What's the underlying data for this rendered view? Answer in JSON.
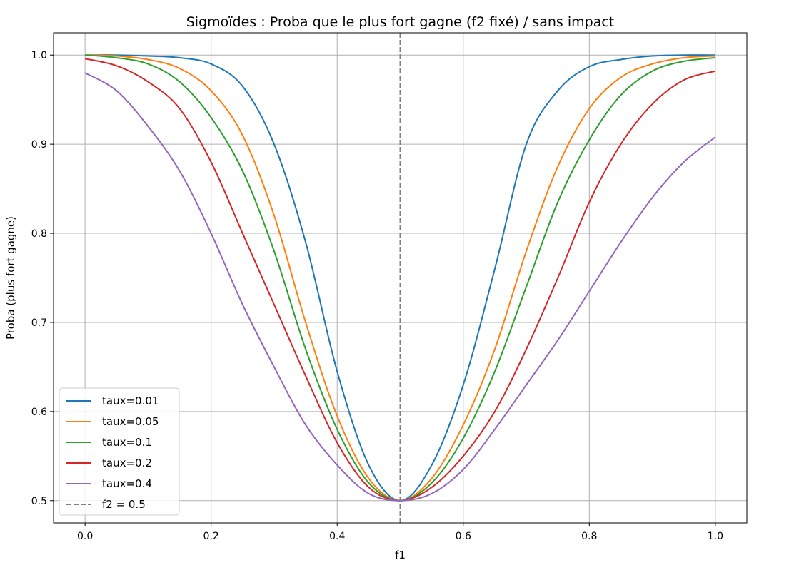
{
  "chart_data": {
    "type": "line",
    "title": "Sigmoïdes : Proba que le plus fort gagne (f2 fixé) / sans impact",
    "xlabel": "f1",
    "ylabel": "Proba (plus fort gagne)",
    "xlim": [
      -0.05,
      1.05
    ],
    "ylim": [
      0.475,
      1.025
    ],
    "xticks": [
      0.0,
      0.2,
      0.4,
      0.6,
      0.8,
      1.0
    ],
    "xtick_labels": [
      "0.0",
      "0.2",
      "0.4",
      "0.6",
      "0.8",
      "1.0"
    ],
    "yticks": [
      0.5,
      0.6,
      0.7,
      0.8,
      0.9,
      1.0
    ],
    "ytick_labels": [
      "0.5",
      "0.6",
      "0.7",
      "0.8",
      "0.9",
      "1.0"
    ],
    "grid": true,
    "legend_position": "lower-left",
    "x": [
      0.0,
      0.05,
      0.1,
      0.15,
      0.2,
      0.25,
      0.3,
      0.35,
      0.4,
      0.45,
      0.5,
      0.55,
      0.6,
      0.65,
      0.7,
      0.75,
      0.8,
      0.85,
      0.9,
      0.95,
      1.0
    ],
    "series": [
      {
        "name": "taux=0.01",
        "color": "#1f77b4",
        "values": [
          1.0,
          1.0,
          0.999,
          0.997,
          0.99,
          0.965,
          0.9,
          0.79,
          0.645,
          0.54,
          0.5,
          0.54,
          0.63,
          0.76,
          0.9,
          0.96,
          0.987,
          0.995,
          0.999,
          1.0,
          1.0
        ]
      },
      {
        "name": "taux=0.05",
        "color": "#ff7f0e",
        "values": [
          1.0,
          0.999,
          0.995,
          0.985,
          0.96,
          0.91,
          0.82,
          0.7,
          0.595,
          0.525,
          0.5,
          0.525,
          0.585,
          0.67,
          0.78,
          0.875,
          0.94,
          0.975,
          0.99,
          0.997,
          0.999
        ]
      },
      {
        "name": "taux=0.1",
        "color": "#2ca02c",
        "values": [
          1.0,
          0.997,
          0.99,
          0.97,
          0.93,
          0.87,
          0.78,
          0.67,
          0.58,
          0.52,
          0.5,
          0.52,
          0.57,
          0.645,
          0.74,
          0.835,
          0.905,
          0.955,
          0.982,
          0.993,
          0.997
        ]
      },
      {
        "name": "taux=0.2",
        "color": "#d62728",
        "values": [
          0.996,
          0.988,
          0.97,
          0.94,
          0.88,
          0.8,
          0.72,
          0.64,
          0.565,
          0.515,
          0.5,
          0.515,
          0.55,
          0.6,
          0.67,
          0.75,
          0.835,
          0.9,
          0.945,
          0.972,
          0.982
        ]
      },
      {
        "name": "taux=0.4",
        "color": "#9467bd",
        "values": [
          0.98,
          0.96,
          0.92,
          0.87,
          0.8,
          0.72,
          0.65,
          0.585,
          0.54,
          0.508,
          0.5,
          0.508,
          0.535,
          0.58,
          0.63,
          0.68,
          0.735,
          0.79,
          0.84,
          0.88,
          0.908
        ]
      }
    ],
    "vline": {
      "x": 0.5,
      "label": "f2 = 0.5",
      "color": "#808080"
    }
  }
}
